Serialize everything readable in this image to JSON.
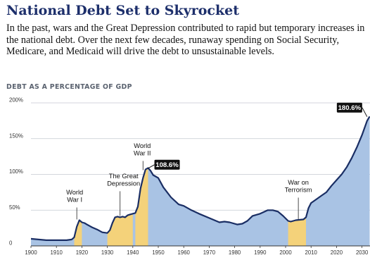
{
  "header": {
    "title": "National Debt Set to Skyrocket",
    "description": "In the past, wars and the Great Depression contributed to rapid but temporary increases in the national debt. Over the next few decades, runaway spending on Social Security, Medicare, and Medicaid will drive the debt to unsustainable levels."
  },
  "colors": {
    "title": "#1d2f6b",
    "area_fill": "#a9c3e4",
    "event_fill": "#f4d27a",
    "line": "#1a2e64",
    "grid": "#c4c9d0",
    "callout_bg": "#111111"
  },
  "chart_data": {
    "type": "area",
    "title": "",
    "ylabel": "DEBT AS A PERCENTAGE OF GDP",
    "xlabel": "",
    "xlim": [
      1900,
      2033
    ],
    "ylim": [
      0,
      200
    ],
    "grid": true,
    "x_ticks": [
      1900,
      1910,
      1920,
      1930,
      1940,
      1950,
      1960,
      1970,
      1980,
      1990,
      2000,
      2010,
      2020,
      2030
    ],
    "y_ticks": [
      0,
      50,
      100,
      150,
      200
    ],
    "y_tick_labels": [
      "0",
      "50%",
      "100%",
      "150%",
      "200%"
    ],
    "series": [
      {
        "x": [
          1900,
          1903,
          1906,
          1909,
          1912,
          1914,
          1916,
          1917,
          1918,
          1919,
          1920,
          1921,
          1922,
          1924,
          1926,
          1928,
          1930,
          1931,
          1932,
          1933,
          1934,
          1935,
          1936,
          1937,
          1938,
          1939,
          1940,
          1941,
          1942,
          1943,
          1944,
          1945,
          1946,
          1947,
          1948,
          1949,
          1950,
          1952,
          1955,
          1958,
          1960,
          1963,
          1966,
          1970,
          1974,
          1976,
          1978,
          1981,
          1983,
          1985,
          1987,
          1990,
          1993,
          1995,
          1997,
          1999,
          2001,
          2002,
          2004,
          2007,
          2008,
          2009,
          2010,
          2012,
          2014,
          2016,
          2018,
          2020,
          2022,
          2024,
          2026,
          2028,
          2030,
          2032,
          2033
        ],
        "values": [
          10,
          9,
          8,
          8,
          8,
          8,
          9,
          12,
          27,
          36,
          33,
          32,
          30,
          26,
          23,
          19,
          18,
          22,
          32,
          40,
          41,
          40,
          41,
          40,
          43,
          44,
          45,
          46,
          55,
          80,
          95,
          107,
          109,
          105,
          99,
          97,
          95,
          82,
          68,
          58,
          56,
          50,
          45,
          39,
          33,
          34,
          33,
          30,
          31,
          35,
          42,
          45,
          50,
          50,
          48,
          42,
          35,
          34,
          36,
          37,
          40,
          53,
          60,
          65,
          70,
          75,
          84,
          92,
          100,
          110,
          123,
          138,
          155,
          175,
          181
        ]
      }
    ],
    "event_ranges": [
      [
        1917,
        1920
      ],
      [
        1930,
        1940
      ],
      [
        1941,
        1946
      ],
      [
        2001,
        2008
      ]
    ],
    "annotations": [
      {
        "label": [
          "World",
          "War I"
        ],
        "year": 1918,
        "value": 36
      },
      {
        "label": [
          "The Great",
          "Depression"
        ],
        "year": 1935,
        "value": 41
      },
      {
        "label": [
          "World",
          "War II"
        ],
        "year": 1944,
        "value": 105
      },
      {
        "label": [
          "War on",
          "Terrorism"
        ],
        "year": 2005,
        "value": 36
      }
    ],
    "callouts": [
      {
        "label": "108.6%",
        "year": 1946,
        "value": 108.6
      },
      {
        "label": "180.6%",
        "year": 2032,
        "value": 180.6
      }
    ]
  }
}
